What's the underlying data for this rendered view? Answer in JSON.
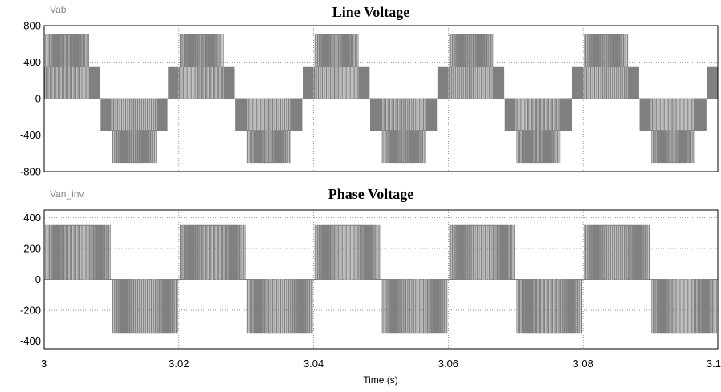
{
  "chart_data": [
    {
      "type": "line",
      "title": "Line Voltage",
      "series_label": "Vab",
      "xlim": [
        3.0,
        3.1
      ],
      "ylim": [
        -800,
        800
      ],
      "yticks": [
        800,
        400,
        0,
        -400,
        -800
      ],
      "ytick_labels": [
        "800",
        "400",
        "0",
        "-400",
        "-800"
      ],
      "grid": true,
      "signal": {
        "kind": "multilevel-pwm-line-voltage",
        "fundamental_hz": 50,
        "dc_level": 350,
        "peak_level": 700,
        "switching_frequency_hz": 5000
      },
      "colors": {
        "trace": "#808080",
        "grid": "#808080",
        "frame": "#000000"
      }
    },
    {
      "type": "line",
      "title": "Phase Voltage",
      "series_label": "Van_inv",
      "xlim": [
        3.0,
        3.1
      ],
      "ylim": [
        -450,
        450
      ],
      "yticks": [
        400,
        200,
        0,
        -200,
        -400
      ],
      "ytick_labels": [
        "400",
        "200",
        "0",
        "-200",
        "-400"
      ],
      "grid": true,
      "signal": {
        "kind": "pwm-phase-voltage",
        "fundamental_hz": 50,
        "dc_level": 350,
        "switching_frequency_hz": 5000
      },
      "colors": {
        "trace": "#808080",
        "grid": "#808080",
        "frame": "#000000"
      }
    }
  ],
  "x_axis": {
    "label": "Time (s)",
    "ticks": [
      3.0,
      3.02,
      3.04,
      3.06,
      3.08,
      3.1
    ],
    "tick_labels": [
      "3",
      "3.02",
      "3.04",
      "3.06",
      "3.08",
      "3.1"
    ]
  }
}
